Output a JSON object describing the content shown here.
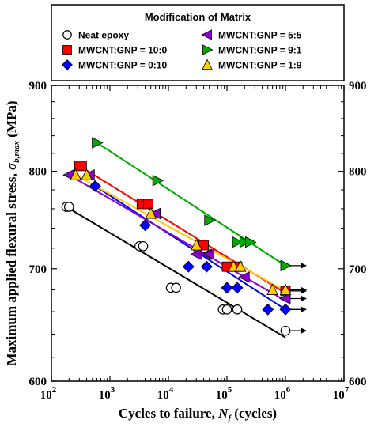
{
  "chart_data": {
    "type": "scatter",
    "title": "",
    "xlabel": "Cycles to failure, N_f (cycles)",
    "xlabel_parts": {
      "pre": "Cycles to failure, ",
      "var": "N",
      "sub": "f",
      "post": " (cycles)"
    },
    "ylabel": "Maximum applied flexural stress, σ_b,max (MPa)",
    "ylabel_parts": {
      "pre": "Maximum applied flexural stress, ",
      "var": "σ",
      "sub": "b,max",
      "post": " (MPa)"
    },
    "x_scale": "log",
    "y_scale": "log",
    "xlim": [
      100,
      10000000
    ],
    "ylim": [
      600,
      900
    ],
    "x_ticks": [
      {
        "value": 100,
        "base": "10",
        "exp": "2"
      },
      {
        "value": 1000,
        "base": "10",
        "exp": "3"
      },
      {
        "value": 10000,
        "base": "10",
        "exp": "4"
      },
      {
        "value": 100000,
        "base": "10",
        "exp": "5"
      },
      {
        "value": 1000000,
        "base": "10",
        "exp": "6"
      },
      {
        "value": 10000000,
        "base": "10",
        "exp": "7"
      }
    ],
    "y_ticks": [
      {
        "value": 600,
        "label": "600"
      },
      {
        "value": 700,
        "label": "700"
      },
      {
        "value": 800,
        "label": "800"
      },
      {
        "value": 900,
        "label": "900"
      }
    ],
    "grid": false,
    "legend": {
      "title": "Modification of Matrix",
      "position": "top"
    },
    "series": [
      {
        "name": "Neat epoxy",
        "marker": "circle-open",
        "color": "#000000",
        "points": [
          [
            180,
            762
          ],
          [
            200,
            762
          ],
          [
            3200,
            722
          ],
          [
            3700,
            722
          ],
          [
            11000,
            682
          ],
          [
            13500,
            682
          ],
          [
            85000,
            662
          ],
          [
            100000,
            662
          ],
          [
            150000,
            662
          ],
          [
            1000000,
            643
          ]
        ],
        "fit": [
          [
            180,
            762
          ],
          [
            1000000,
            637
          ]
        ],
        "runout": [
          1000000,
          643
        ]
      },
      {
        "name": "MWCNT:GNP = 10:0",
        "marker": "square",
        "color": "#ff0000",
        "points": [
          [
            300,
            806
          ],
          [
            330,
            806
          ],
          [
            3500,
            765
          ],
          [
            4500,
            765
          ],
          [
            35000,
            723
          ],
          [
            40000,
            723
          ],
          [
            100000,
            702
          ],
          [
            150000,
            702
          ],
          [
            1000000,
            679
          ]
        ],
        "fit": [
          [
            300,
            806
          ],
          [
            1000000,
            677
          ]
        ],
        "runout": [
          1000000,
          679
        ]
      },
      {
        "name": "MWCNT:GNP = 0:10",
        "marker": "diamond",
        "color": "#0000ff",
        "points": [
          [
            560,
            784
          ],
          [
            4000,
            743
          ],
          [
            22000,
            702
          ],
          [
            45000,
            702
          ],
          [
            100000,
            682
          ],
          [
            150000,
            682
          ],
          [
            500000,
            662
          ],
          [
            1000000,
            662
          ]
        ],
        "fit": [
          [
            560,
            784
          ],
          [
            1000000,
            662
          ]
        ],
        "runout": [
          1000000,
          662
        ]
      },
      {
        "name": "MWCNT:GNP = 5:5",
        "marker": "tri-left",
        "color": "#8b00cc",
        "points": [
          [
            200,
            796
          ],
          [
            450,
            796
          ],
          [
            6000,
            755
          ],
          [
            30000,
            714
          ],
          [
            45000,
            714
          ],
          [
            50000,
            714
          ],
          [
            200000,
            692
          ],
          [
            1000000,
            672
          ]
        ],
        "fit": [
          [
            200,
            796
          ],
          [
            1000000,
            670
          ]
        ],
        "runout": [
          1000000,
          672
        ]
      },
      {
        "name": "MWCNT:GNP = 9:1",
        "marker": "tri-right",
        "color": "#00aa00",
        "points": [
          [
            600,
            832
          ],
          [
            6500,
            790
          ],
          [
            50000,
            748
          ],
          [
            150000,
            726
          ],
          [
            200000,
            726
          ],
          [
            250000,
            726
          ],
          [
            1000000,
            703
          ]
        ],
        "fit": [
          [
            600,
            832
          ],
          [
            1000000,
            703
          ]
        ],
        "runout": [
          1000000,
          703
        ]
      },
      {
        "name": "MWCNT:GNP = 1:9",
        "marker": "tri-up",
        "color": "#ffcc00",
        "points": [
          [
            260,
            796
          ],
          [
            400,
            796
          ],
          [
            5000,
            755
          ],
          [
            30000,
            723
          ],
          [
            130000,
            702
          ],
          [
            170000,
            702
          ],
          [
            600000,
            680
          ],
          [
            1000000,
            680
          ]
        ],
        "fit": [
          [
            260,
            796
          ],
          [
            1000000,
            679
          ]
        ],
        "runout": [
          1000000,
          680
        ]
      }
    ]
  }
}
